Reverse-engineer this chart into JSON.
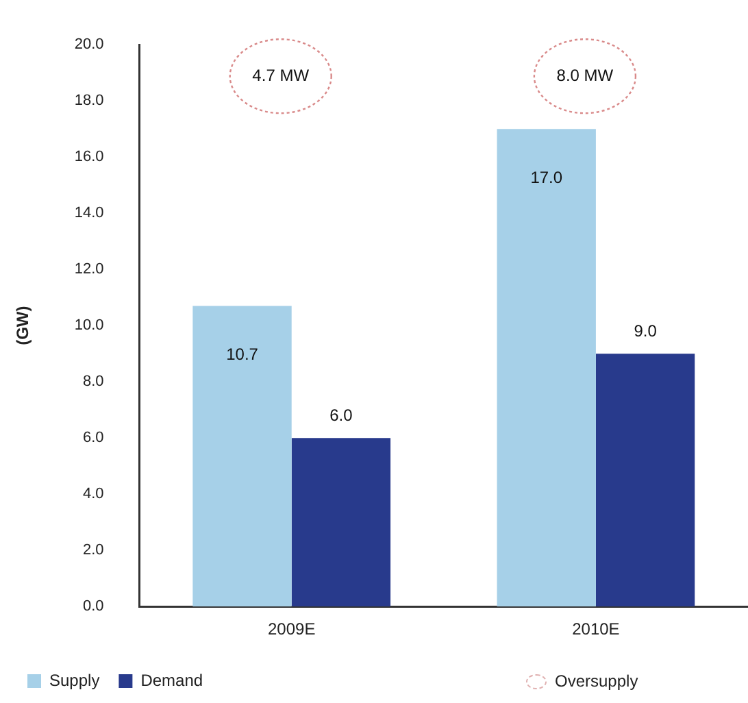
{
  "chart_data": {
    "type": "bar",
    "ylabel": "(GW)",
    "categories": [
      "2009E",
      "2010E"
    ],
    "series": [
      {
        "name": "Supply",
        "color": "#a6d0e8",
        "values": [
          10.7,
          17.0
        ],
        "value_labels": [
          "10.7",
          "17.0"
        ]
      },
      {
        "name": "Demand",
        "color": "#283a8c",
        "values": [
          6.0,
          9.0
        ],
        "value_labels": [
          "6.0",
          "9.0"
        ]
      }
    ],
    "ylim": [
      0,
      20
    ],
    "yticks": [
      {
        "value": 0,
        "label": "0.0"
      },
      {
        "value": 2,
        "label": "2.0"
      },
      {
        "value": 4,
        "label": "4.0"
      },
      {
        "value": 6,
        "label": "6.0"
      },
      {
        "value": 8,
        "label": "8.0"
      },
      {
        "value": 10,
        "label": "10.0"
      },
      {
        "value": 12,
        "label": "12.0"
      },
      {
        "value": 14,
        "label": "14.0"
      },
      {
        "value": 16,
        "label": "16.0"
      },
      {
        "value": 18,
        "label": "18.0"
      },
      {
        "value": 20,
        "label": "20.0"
      }
    ],
    "annotations": [
      "4.7 MW",
      "8.0 MW",
      "Oversupply"
    ],
    "grid": false,
    "legend": "bottom"
  }
}
